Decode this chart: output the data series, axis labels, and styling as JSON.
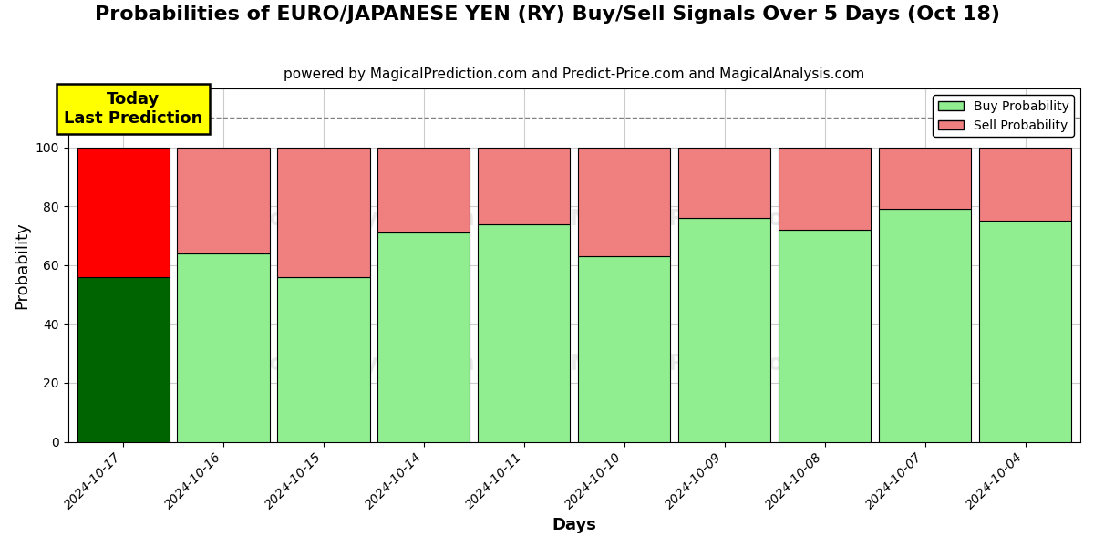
{
  "title": "Probabilities of EURO/JAPANESE YEN (RY) Buy/Sell Signals Over 5 Days (Oct 18)",
  "subtitle": "powered by MagicalPrediction.com and Predict-Price.com and MagicalAnalysis.com",
  "xlabel": "Days",
  "ylabel": "Probability",
  "categories": [
    "2024-10-17",
    "2024-10-16",
    "2024-10-15",
    "2024-10-14",
    "2024-10-11",
    "2024-10-10",
    "2024-10-09",
    "2024-10-08",
    "2024-10-07",
    "2024-10-04"
  ],
  "buy_values": [
    56,
    64,
    56,
    71,
    74,
    63,
    76,
    72,
    79,
    75
  ],
  "sell_values": [
    44,
    36,
    44,
    29,
    26,
    37,
    24,
    28,
    21,
    25
  ],
  "today_bar_index": 0,
  "today_buy_color": "#006400",
  "today_sell_color": "#ff0000",
  "normal_buy_color": "#90EE90",
  "normal_sell_color": "#F08080",
  "bar_edge_color": "black",
  "ylim": [
    0,
    120
  ],
  "yticks": [
    0,
    20,
    40,
    60,
    80,
    100
  ],
  "dashed_line_y": 110,
  "legend_buy_label": "Buy Probability",
  "legend_sell_label": "Sell Probability",
  "today_label_text": "Today\nLast Prediction",
  "title_fontsize": 16,
  "subtitle_fontsize": 11,
  "axis_label_fontsize": 13,
  "tick_fontsize": 10,
  "background_color": "#ffffff",
  "grid_color": "#cccccc",
  "bar_width": 0.92,
  "watermark1_text": "MagicalAnalysis.com",
  "watermark2_text": "MagicalPrediction.com",
  "watermark_color": "#888888",
  "watermark_alpha": 0.18
}
